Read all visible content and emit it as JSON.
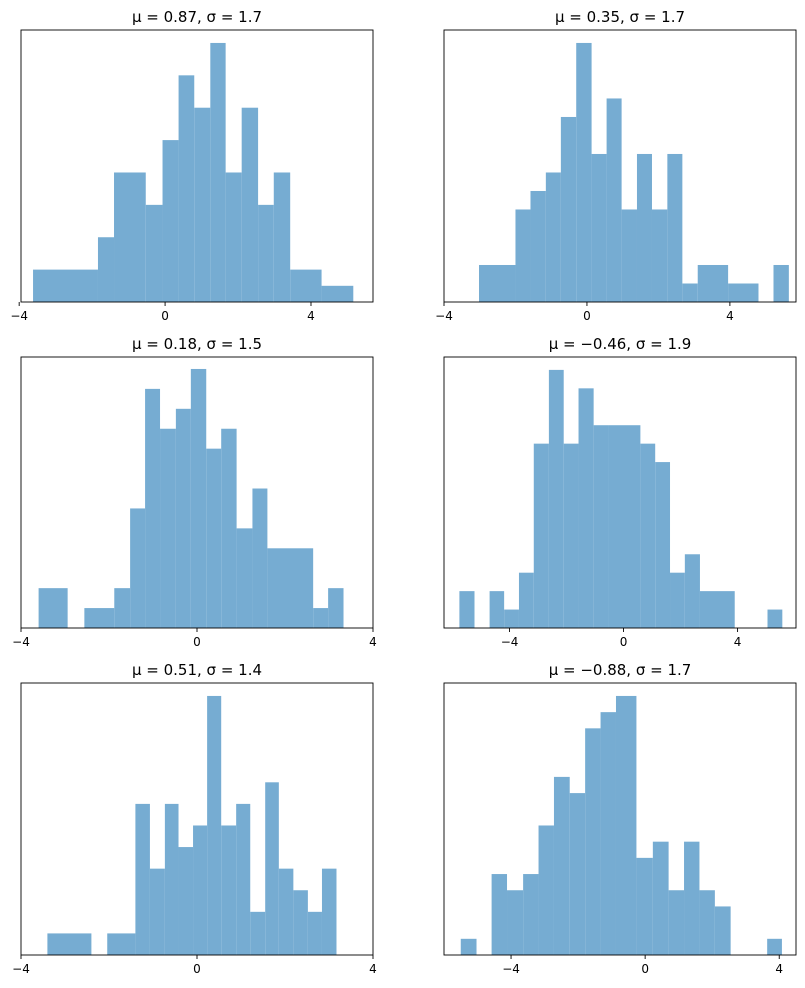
{
  "chart_data": [
    {
      "type": "bar",
      "title": "μ = 0.87,    σ = 1.7",
      "color": "#76acd2",
      "xlim": [
        -3.95,
        5.7
      ],
      "xticks": [
        -4,
        0,
        4
      ],
      "xtick_labels": [
        "−4",
        "0",
        "4"
      ],
      "yticks": [],
      "bins": [
        {
          "x0": -3.62,
          "x1": -1.84,
          "count": 1
        },
        {
          "x0": -1.84,
          "x1": -1.4,
          "count": 2
        },
        {
          "x0": -1.4,
          "x1": -0.53,
          "count": 4
        },
        {
          "x0": -0.53,
          "x1": -0.07,
          "count": 3
        },
        {
          "x0": -0.07,
          "x1": 0.37,
          "count": 5
        },
        {
          "x0": 0.37,
          "x1": 0.8,
          "count": 7
        },
        {
          "x0": 0.8,
          "x1": 1.24,
          "count": 6
        },
        {
          "x0": 1.24,
          "x1": 1.66,
          "count": 8
        },
        {
          "x0": 1.66,
          "x1": 2.1,
          "count": 4
        },
        {
          "x0": 2.1,
          "x1": 2.55,
          "count": 6
        },
        {
          "x0": 2.55,
          "x1": 2.98,
          "count": 3
        },
        {
          "x0": 2.98,
          "x1": 3.43,
          "count": 4
        },
        {
          "x0": 3.43,
          "x1": 4.29,
          "count": 1
        },
        {
          "x0": 4.29,
          "x1": 5.16,
          "count": 0.5
        }
      ],
      "ylim": [
        0,
        8.4
      ]
    },
    {
      "type": "bar",
      "title": "μ = 0.35,    σ = 1.7",
      "color": "#76acd2",
      "xlim": [
        -4,
        5.85
      ],
      "xticks": [
        -4,
        0,
        4
      ],
      "xtick_labels": [
        "−4",
        "0",
        "4"
      ],
      "yticks": [],
      "bins": [
        {
          "x0": -3.02,
          "x1": -2.0,
          "count": 2
        },
        {
          "x0": -2.0,
          "x1": -1.58,
          "count": 5
        },
        {
          "x0": -1.58,
          "x1": -1.15,
          "count": 6
        },
        {
          "x0": -1.15,
          "x1": -0.73,
          "count": 7
        },
        {
          "x0": -0.73,
          "x1": -0.3,
          "count": 10
        },
        {
          "x0": -0.3,
          "x1": 0.13,
          "count": 14
        },
        {
          "x0": 0.13,
          "x1": 0.55,
          "count": 8
        },
        {
          "x0": 0.55,
          "x1": 0.97,
          "count": 11
        },
        {
          "x0": 0.97,
          "x1": 1.4,
          "count": 5
        },
        {
          "x0": 1.4,
          "x1": 1.82,
          "count": 8
        },
        {
          "x0": 1.82,
          "x1": 2.25,
          "count": 5
        },
        {
          "x0": 2.25,
          "x1": 2.67,
          "count": 8
        },
        {
          "x0": 2.67,
          "x1": 3.1,
          "count": 1
        },
        {
          "x0": 3.1,
          "x1": 3.95,
          "count": 2
        },
        {
          "x0": 3.95,
          "x1": 4.8,
          "count": 1
        },
        {
          "x0": 5.22,
          "x1": 5.65,
          "count": 2
        }
      ],
      "ylim": [
        0,
        14.7
      ]
    },
    {
      "type": "bar",
      "title": "μ = 0.18,    σ = 1.5",
      "color": "#76acd2",
      "xlim": [
        -4,
        4
      ],
      "xticks": [
        -4,
        0,
        4
      ],
      "xtick_labels": [
        "−4",
        "0",
        "4"
      ],
      "yticks": [],
      "bins": [
        {
          "x0": -3.6,
          "x1": -2.94,
          "count": 2
        },
        {
          "x0": -2.56,
          "x1": -1.88,
          "count": 1
        },
        {
          "x0": -1.88,
          "x1": -1.52,
          "count": 2
        },
        {
          "x0": -1.52,
          "x1": -1.18,
          "count": 6
        },
        {
          "x0": -1.18,
          "x1": -0.84,
          "count": 12
        },
        {
          "x0": -0.84,
          "x1": -0.48,
          "count": 10
        },
        {
          "x0": -0.48,
          "x1": -0.14,
          "count": 11
        },
        {
          "x0": -0.14,
          "x1": 0.21,
          "count": 13
        },
        {
          "x0": 0.21,
          "x1": 0.55,
          "count": 9
        },
        {
          "x0": 0.55,
          "x1": 0.9,
          "count": 10
        },
        {
          "x0": 0.9,
          "x1": 1.26,
          "count": 5
        },
        {
          "x0": 1.26,
          "x1": 1.6,
          "count": 7
        },
        {
          "x0": 1.6,
          "x1": 2.64,
          "count": 4
        },
        {
          "x0": 2.64,
          "x1": 2.98,
          "count": 1
        },
        {
          "x0": 2.98,
          "x1": 3.33,
          "count": 2
        }
      ],
      "ylim": [
        0,
        13.6
      ]
    },
    {
      "type": "bar",
      "title": "μ = −0.46,    σ = 1.9",
      "color": "#76acd2",
      "xlim": [
        -6.3,
        6.05
      ],
      "xticks": [
        -4,
        0,
        4
      ],
      "xtick_labels": [
        "−4",
        "0",
        "4"
      ],
      "yticks": [],
      "bins": [
        {
          "x0": -5.76,
          "x1": -5.23,
          "count": 2
        },
        {
          "x0": -4.7,
          "x1": -4.19,
          "count": 2
        },
        {
          "x0": -4.19,
          "x1": -3.67,
          "count": 1
        },
        {
          "x0": -3.67,
          "x1": -3.15,
          "count": 3
        },
        {
          "x0": -3.15,
          "x1": -2.62,
          "count": 10
        },
        {
          "x0": -2.62,
          "x1": -2.1,
          "count": 14
        },
        {
          "x0": -2.1,
          "x1": -1.58,
          "count": 10
        },
        {
          "x0": -1.58,
          "x1": -1.05,
          "count": 13
        },
        {
          "x0": -1.05,
          "x1": -0.53,
          "count": 11
        },
        {
          "x0": -0.53,
          "x1": 0.59,
          "count": 11
        },
        {
          "x0": 0.59,
          "x1": 1.11,
          "count": 10
        },
        {
          "x0": 1.11,
          "x1": 1.63,
          "count": 9
        },
        {
          "x0": 1.63,
          "x1": 2.15,
          "count": 3
        },
        {
          "x0": 2.15,
          "x1": 2.68,
          "count": 4
        },
        {
          "x0": 2.68,
          "x1": 3.9,
          "count": 2
        },
        {
          "x0": 5.05,
          "x1": 5.57,
          "count": 1
        }
      ],
      "ylim": [
        0,
        14.7
      ]
    },
    {
      "type": "bar",
      "title": "μ = 0.51,    σ = 1.4",
      "color": "#76acd2",
      "xlim": [
        -4,
        4
      ],
      "xticks": [
        -4,
        0,
        4
      ],
      "xtick_labels": [
        "−4",
        "0",
        "4"
      ],
      "yticks": [],
      "bins": [
        {
          "x0": -3.4,
          "x1": -2.4,
          "count": 1
        },
        {
          "x0": -2.04,
          "x1": -1.4,
          "count": 1
        },
        {
          "x0": -1.4,
          "x1": -1.07,
          "count": 7
        },
        {
          "x0": -1.07,
          "x1": -0.73,
          "count": 4
        },
        {
          "x0": -0.73,
          "x1": -0.42,
          "count": 7
        },
        {
          "x0": -0.42,
          "x1": -0.09,
          "count": 5
        },
        {
          "x0": -0.09,
          "x1": 0.23,
          "count": 6
        },
        {
          "x0": 0.23,
          "x1": 0.55,
          "count": 12
        },
        {
          "x0": 0.55,
          "x1": 0.89,
          "count": 6
        },
        {
          "x0": 0.89,
          "x1": 1.21,
          "count": 7
        },
        {
          "x0": 1.21,
          "x1": 1.55,
          "count": 2
        },
        {
          "x0": 1.55,
          "x1": 1.86,
          "count": 8
        },
        {
          "x0": 1.86,
          "x1": 2.19,
          "count": 4
        },
        {
          "x0": 2.19,
          "x1": 2.52,
          "count": 3
        },
        {
          "x0": 2.52,
          "x1": 2.84,
          "count": 2
        },
        {
          "x0": 2.84,
          "x1": 3.17,
          "count": 4
        }
      ],
      "ylim": [
        0,
        12.6
      ]
    },
    {
      "type": "bar",
      "title": "μ = −0.88,    σ = 1.7",
      "color": "#76acd2",
      "xlim": [
        -6,
        4.5
      ],
      "xticks": [
        -4,
        0,
        4
      ],
      "xtick_labels": [
        "−4",
        "0",
        "4"
      ],
      "yticks": [],
      "bins": [
        {
          "x0": -5.5,
          "x1": -5.03,
          "count": 1
        },
        {
          "x0": -4.58,
          "x1": -4.12,
          "count": 5
        },
        {
          "x0": -4.12,
          "x1": -3.64,
          "count": 4
        },
        {
          "x0": -3.64,
          "x1": -3.18,
          "count": 5
        },
        {
          "x0": -3.18,
          "x1": -2.72,
          "count": 8
        },
        {
          "x0": -2.72,
          "x1": -2.25,
          "count": 11
        },
        {
          "x0": -2.25,
          "x1": -1.79,
          "count": 10
        },
        {
          "x0": -1.79,
          "x1": -1.33,
          "count": 14
        },
        {
          "x0": -1.33,
          "x1": -0.87,
          "count": 15
        },
        {
          "x0": -0.87,
          "x1": -0.26,
          "count": 16
        },
        {
          "x0": -0.26,
          "x1": 0.23,
          "count": 6
        },
        {
          "x0": 0.23,
          "x1": 0.7,
          "count": 7
        },
        {
          "x0": 0.7,
          "x1": 1.16,
          "count": 4
        },
        {
          "x0": 1.16,
          "x1": 1.62,
          "count": 7
        },
        {
          "x0": 1.62,
          "x1": 2.08,
          "count": 4
        },
        {
          "x0": 2.08,
          "x1": 2.55,
          "count": 3
        },
        {
          "x0": 3.64,
          "x1": 4.08,
          "count": 1
        }
      ],
      "ylim": [
        0,
        16.8
      ]
    }
  ]
}
